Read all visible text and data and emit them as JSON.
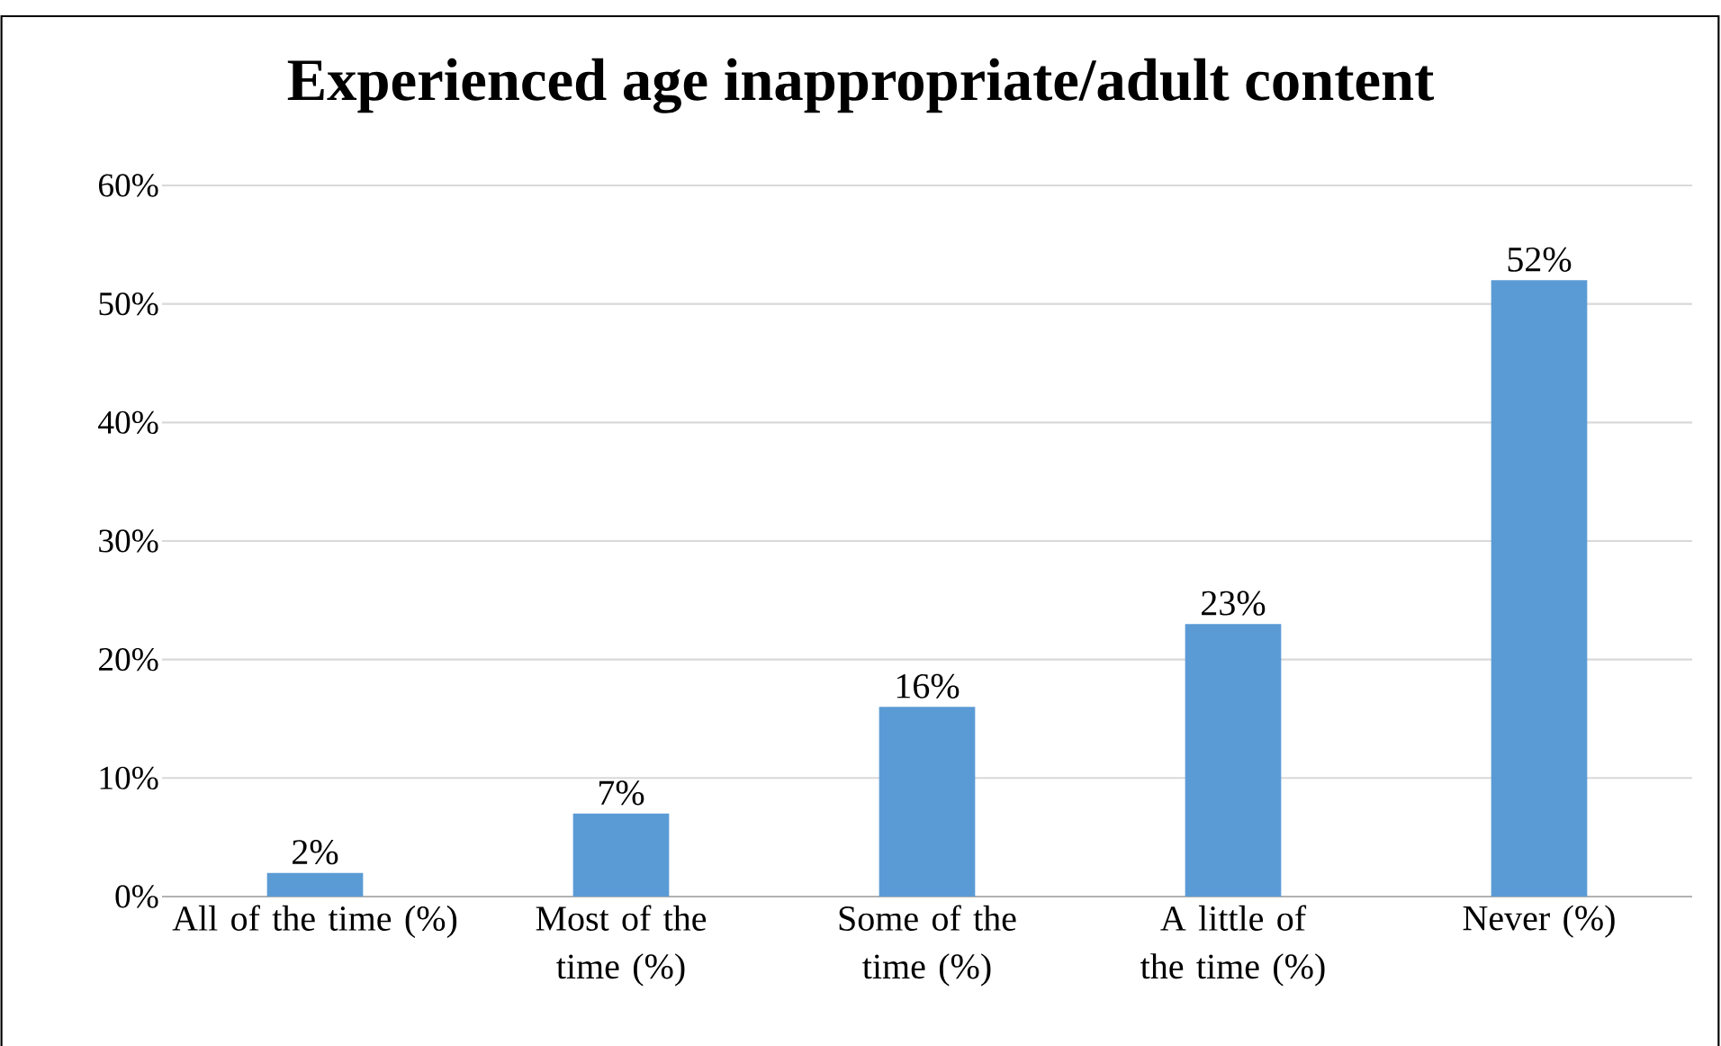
{
  "chart_data": {
    "type": "bar",
    "title": "Experienced age inappropriate/adult content",
    "categories": [
      "All of the time (%)",
      "Most of the time (%)",
      "Some of the time (%)",
      "A little of the time (%)",
      "Never (%)"
    ],
    "values": [
      2,
      7,
      16,
      23,
      52
    ],
    "value_labels": [
      "2%",
      "7%",
      "16%",
      "23%",
      "52%"
    ],
    "color": "#5b9bd5",
    "ylim": [
      0,
      60
    ],
    "yticks": [
      {
        "value": 0,
        "label": "0%"
      },
      {
        "value": 10,
        "label": "10%"
      },
      {
        "value": 20,
        "label": "20%"
      },
      {
        "value": 30,
        "label": "30%"
      },
      {
        "value": 40,
        "label": "40%"
      },
      {
        "value": 50,
        "label": "50%"
      },
      {
        "value": 60,
        "label": "60%"
      }
    ],
    "grid": "y"
  }
}
